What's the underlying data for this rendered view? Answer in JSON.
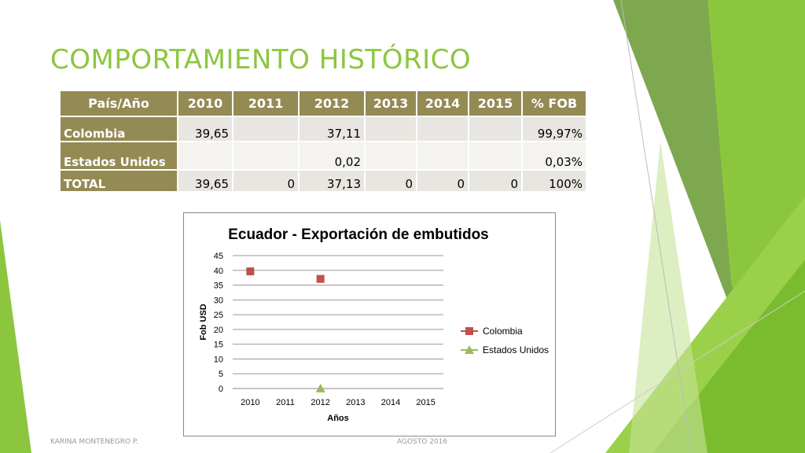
{
  "slide": {
    "title": "COMPORTAMIENTO HISTÓRICO",
    "footer_left": "KARINA MONTENEGRO P.",
    "footer_right": "AGOSTO 2016",
    "accent_color": "#8cc63f",
    "header_color": "#948a54"
  },
  "table": {
    "headers": [
      "País/Año",
      "2010",
      "2011",
      "2012",
      "2013",
      "2014",
      "2015",
      "% FOB"
    ],
    "rows": [
      [
        "Colombia",
        "39,65",
        "",
        "37,11",
        "",
        "",
        "",
        "99,97%"
      ],
      [
        "Estados Unidos",
        "",
        "",
        "0,02",
        "",
        "",
        "",
        "0,03%"
      ],
      [
        "TOTAL",
        "39,65",
        "0",
        "37,13",
        "0",
        "0",
        "0",
        "100%"
      ]
    ]
  },
  "chart_data": {
    "type": "scatter",
    "title": "Ecuador - Exportación de embutidos",
    "xlabel": "Años",
    "ylabel": "Fob USD",
    "categories": [
      "2010",
      "2011",
      "2012",
      "2013",
      "2014",
      "2015"
    ],
    "ylim": [
      0,
      45
    ],
    "yticks": [
      0,
      5,
      10,
      15,
      20,
      25,
      30,
      35,
      40,
      45
    ],
    "grid": true,
    "legend_position": "right",
    "series": [
      {
        "name": "Colombia",
        "marker": "square",
        "color": "#c0504d",
        "values": [
          39.65,
          null,
          37.11,
          null,
          null,
          null
        ]
      },
      {
        "name": "Estados Unidos",
        "marker": "triangle",
        "color": "#9bbb59",
        "values": [
          null,
          null,
          0.02,
          null,
          null,
          null
        ]
      }
    ]
  }
}
